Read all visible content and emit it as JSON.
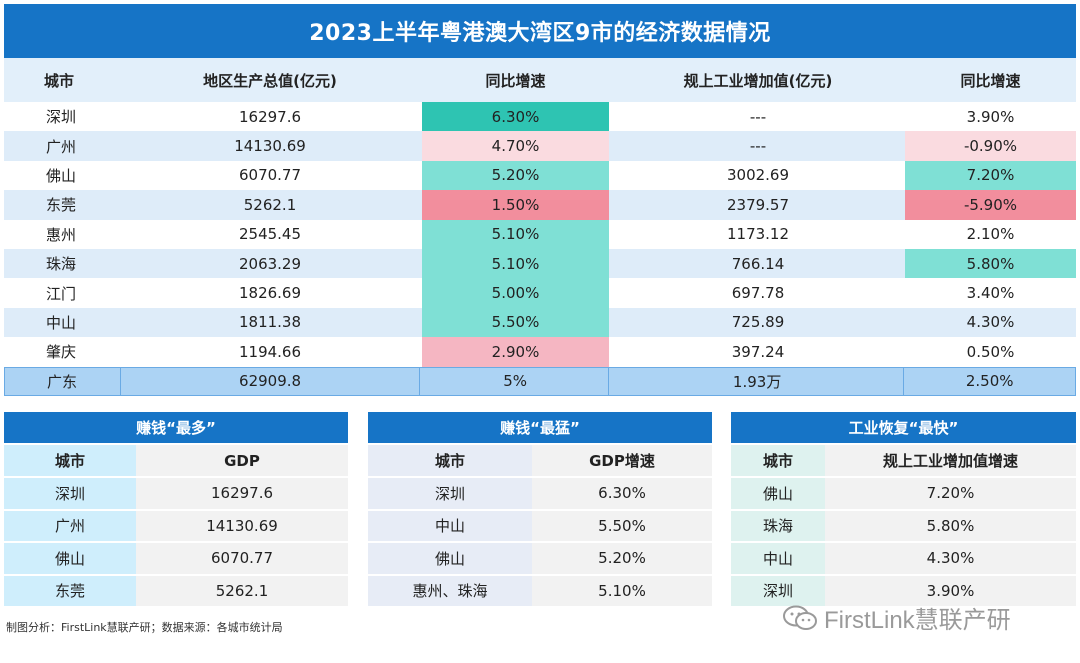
{
  "title": "2023上半年粤港澳大湾区9市的经济数据情况",
  "colors": {
    "header_blue": "#1674c6",
    "growth_very_high": "#2ec4b2",
    "growth_high": "#7fe0d5",
    "growth_low": "#f5b6c2",
    "growth_very_low": "#f28e9d",
    "growth_slightly_low": "#fadbe0"
  },
  "chart_data": {
    "type": "table",
    "title": "2023上半年粤港澳大湾区9市的经济数据情况",
    "columns": [
      "城市",
      "地区生产总值(亿元)",
      "同比增速",
      "规上工业增加值(亿元)",
      "同比增速"
    ],
    "rows": [
      {
        "city": "深圳",
        "gdp": "16297.6",
        "gdp_growth": "6.30%",
        "ind": "---",
        "ind_growth": "3.90%",
        "gdp_color": "#2ec4b2",
        "ind_color": ""
      },
      {
        "city": "广州",
        "gdp": "14130.69",
        "gdp_growth": "4.70%",
        "ind": "---",
        "ind_growth": "-0.90%",
        "gdp_color": "#fadbe0",
        "ind_color": "#fadbe0"
      },
      {
        "city": "佛山",
        "gdp": "6070.77",
        "gdp_growth": "5.20%",
        "ind": "3002.69",
        "ind_growth": "7.20%",
        "gdp_color": "#7fe0d5",
        "ind_color": "#7fe0d5"
      },
      {
        "city": "东莞",
        "gdp": "5262.1",
        "gdp_growth": "1.50%",
        "ind": "2379.57",
        "ind_growth": "-5.90%",
        "gdp_color": "#f28e9d",
        "ind_color": "#f28e9d"
      },
      {
        "city": "惠州",
        "gdp": "2545.45",
        "gdp_growth": "5.10%",
        "ind": "1173.12",
        "ind_growth": "2.10%",
        "gdp_color": "#7fe0d5",
        "ind_color": ""
      },
      {
        "city": "珠海",
        "gdp": "2063.29",
        "gdp_growth": "5.10%",
        "ind": "766.14",
        "ind_growth": "5.80%",
        "gdp_color": "#7fe0d5",
        "ind_color": "#7fe0d5"
      },
      {
        "city": "江门",
        "gdp": "1826.69",
        "gdp_growth": "5.00%",
        "ind": "697.78",
        "ind_growth": "3.40%",
        "gdp_color": "#7fe0d5",
        "ind_color": ""
      },
      {
        "city": "中山",
        "gdp": "1811.38",
        "gdp_growth": "5.50%",
        "ind": "725.89",
        "ind_growth": "4.30%",
        "gdp_color": "#7fe0d5",
        "ind_color": ""
      },
      {
        "city": "肇庆",
        "gdp": "1194.66",
        "gdp_growth": "2.90%",
        "ind": "397.24",
        "ind_growth": "0.50%",
        "gdp_color": "#f5b6c2",
        "ind_color": ""
      }
    ],
    "total": {
      "city": "广东",
      "gdp": "62909.8",
      "gdp_growth": "5%",
      "ind": "1.93万",
      "ind_growth": "2.50%"
    }
  },
  "sub_tables": [
    {
      "title": "赚钱“最多”",
      "headers": [
        "城市",
        "GDP"
      ],
      "rows": [
        [
          "深圳",
          "16297.6"
        ],
        [
          "广州",
          "14130.69"
        ],
        [
          "佛山",
          "6070.77"
        ],
        [
          "东莞",
          "5262.1"
        ]
      ]
    },
    {
      "title": "赚钱“最猛”",
      "headers": [
        "城市",
        "GDP增速"
      ],
      "rows": [
        [
          "深圳",
          "6.30%"
        ],
        [
          "中山",
          "5.50%"
        ],
        [
          "佛山",
          "5.20%"
        ],
        [
          "惠州、珠海",
          "5.10%"
        ]
      ]
    },
    {
      "title": "工业恢复“最快”",
      "headers": [
        "城市",
        "规上工业增加值增速"
      ],
      "rows": [
        [
          "佛山",
          "7.20%"
        ],
        [
          "珠海",
          "5.80%"
        ],
        [
          "中山",
          "4.30%"
        ],
        [
          "深圳",
          "3.90%"
        ]
      ]
    }
  ],
  "footer": "制图分析：FirstLink慧联产研；数据来源：各城市统计局",
  "watermark": {
    "text": "FirstLink慧联产研",
    "icon": "wechat-icon"
  }
}
